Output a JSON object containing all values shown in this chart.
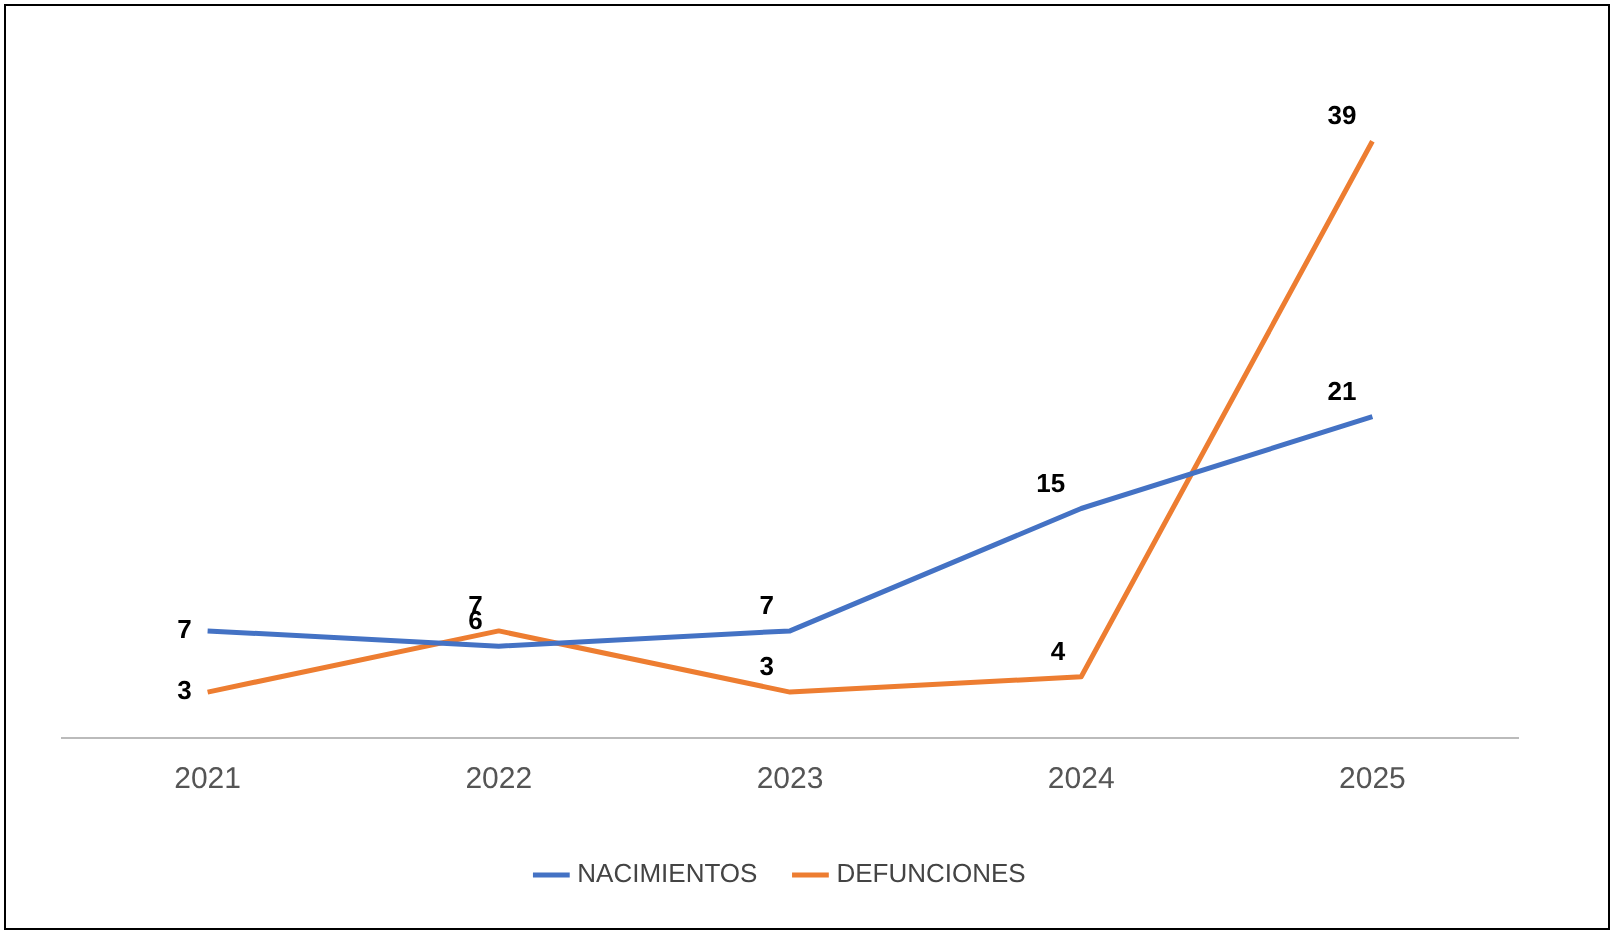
{
  "chart_data": {
    "type": "line",
    "categories": [
      "2021",
      "2022",
      "2023",
      "2024",
      "2025"
    ],
    "series": [
      {
        "name": "NACIMIENTOS",
        "color": "#4472c4",
        "values": [
          7,
          6,
          7,
          15,
          21
        ]
      },
      {
        "name": "DEFUNCIONES",
        "color": "#ed7d31",
        "values": [
          3,
          7,
          3,
          4,
          39
        ]
      }
    ],
    "data_labels": true,
    "legend": "bottom",
    "grid": false,
    "tick_labels": "x",
    "marker": "none",
    "line_style": "solid"
  }
}
